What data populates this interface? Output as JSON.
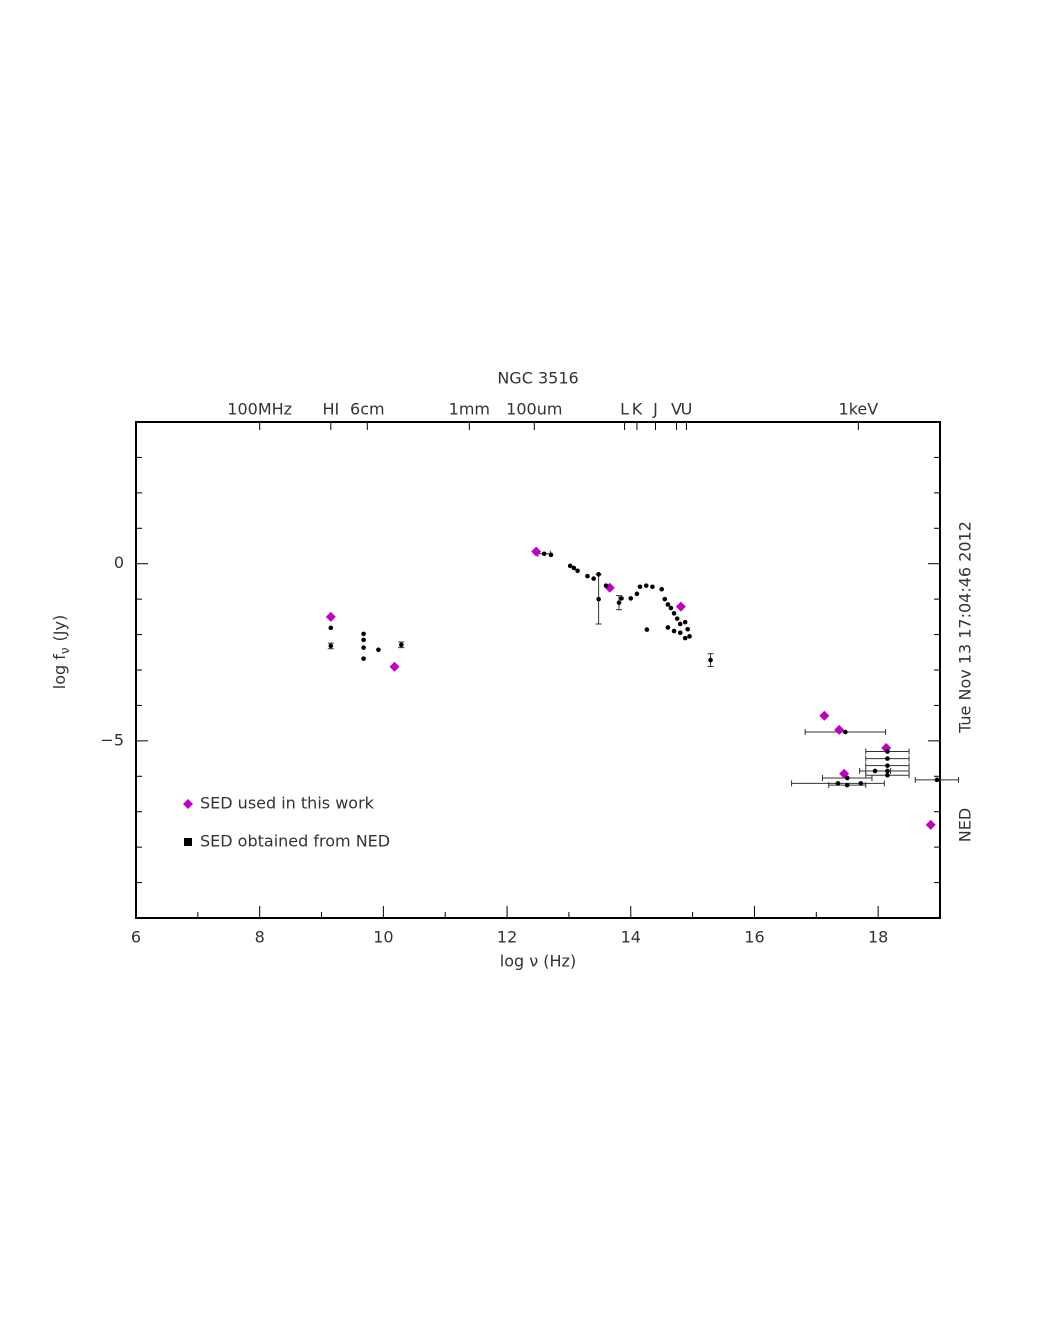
{
  "chart_data": {
    "type": "scatter",
    "title": "NGC 3516",
    "xlabel": "log ν (Hz)",
    "ylabel": "log f",
    "ylabel_sub": "ν",
    "ylabel_unit": "(Jy)",
    "side_text": "Tue Nov 13 17:04:46 2012",
    "side_source": "NED",
    "xlim": [
      6,
      19
    ],
    "ylim": [
      -10,
      4
    ],
    "xticks": [
      6,
      8,
      10,
      12,
      14,
      16,
      18
    ],
    "xminorticks": [
      7,
      9,
      11,
      13,
      15,
      17
    ],
    "yticks": [
      {
        "value": -5,
        "label": "−5"
      },
      0
    ],
    "yminorticks": [
      -9,
      -8,
      -7,
      -6,
      -4,
      -3,
      -2,
      -1,
      1,
      2,
      3
    ],
    "top_labels": [
      {
        "value": 8,
        "label": "100MHz"
      },
      {
        "value": 9.15,
        "label": "HI"
      },
      {
        "value": 9.74,
        "label": "6cm"
      },
      {
        "value": 11.39,
        "label": "1mm"
      },
      {
        "value": 12.44,
        "label": "100um"
      },
      {
        "value": 13.9,
        "label": "L"
      },
      {
        "value": 14.1,
        "label": "K"
      },
      {
        "value": 14.4,
        "label": "J"
      },
      {
        "value": 14.74,
        "label": "V"
      },
      {
        "value": 14.9,
        "label": "U"
      },
      {
        "value": 17.68,
        "label": "1keV"
      }
    ],
    "legend": "lower left",
    "series": [
      {
        "name": "SED used in this work",
        "color": "#c000c0",
        "marker": "diamond",
        "x": [
          9.15,
          10.18,
          12.47,
          13.66,
          14.81,
          17.13,
          17.37,
          17.45,
          18.13,
          18.85
        ],
        "values": [
          -1.5,
          -2.91,
          0.34,
          -0.68,
          -1.21,
          -4.29,
          -4.69,
          -5.93,
          -5.2,
          -7.37
        ]
      },
      {
        "name": "SED obtained from NED",
        "color": "#000000",
        "marker": "circle",
        "x": [
          9.15,
          9.15,
          9.68,
          9.68,
          9.68,
          9.68,
          9.92,
          10.29,
          12.6,
          12.71,
          13.02,
          13.08,
          13.14,
          13.3,
          13.4,
          13.48,
          13.48,
          13.6,
          13.81,
          13.85,
          14.0,
          14.1,
          14.15,
          14.25,
          14.35,
          14.26,
          14.5,
          14.55,
          14.6,
          14.65,
          14.7,
          14.75,
          14.8,
          14.88,
          14.92,
          14.95,
          14.6,
          14.7,
          14.8,
          14.88,
          15.29,
          17.47,
          18.15,
          18.15,
          18.15,
          18.15,
          18.15,
          17.95,
          17.5,
          17.5,
          17.72,
          17.35,
          18.95
        ],
        "values": [
          -1.81,
          -2.32,
          -1.98,
          -2.15,
          -2.37,
          -2.68,
          -2.43,
          -2.29,
          0.28,
          0.25,
          -0.06,
          -0.12,
          -0.2,
          -0.35,
          -0.42,
          -0.3,
          -1.0,
          -0.62,
          -1.1,
          -0.98,
          -0.98,
          -0.85,
          -0.65,
          -0.62,
          -0.65,
          -1.86,
          -0.72,
          -1.0,
          -1.15,
          -1.25,
          -1.4,
          -1.55,
          -1.7,
          -1.65,
          -1.85,
          -2.05,
          -1.8,
          -1.9,
          -1.95,
          -2.1,
          -2.72,
          -4.75,
          -5.3,
          -5.5,
          -5.7,
          -5.85,
          -5.97,
          -5.85,
          -6.05,
          -6.25,
          -6.2,
          -6.2,
          -6.1
        ],
        "xerr": [
          null,
          null,
          null,
          null,
          null,
          null,
          null,
          null,
          0.1,
          null,
          null,
          null,
          null,
          null,
          null,
          null,
          null,
          null,
          null,
          null,
          null,
          null,
          null,
          null,
          null,
          null,
          null,
          null,
          null,
          null,
          null,
          null,
          null,
          null,
          null,
          null,
          null,
          null,
          null,
          null,
          null,
          0.65,
          0.35,
          0.35,
          0.35,
          0.35,
          0.35,
          0.25,
          0.4,
          0.3,
          null,
          0.75,
          0.35
        ],
        "yerr": [
          null,
          0.08,
          null,
          null,
          null,
          null,
          null,
          0.08,
          null,
          null,
          null,
          null,
          null,
          null,
          null,
          null,
          0.7,
          null,
          0.2,
          null,
          null,
          null,
          null,
          null,
          null,
          null,
          null,
          null,
          null,
          null,
          null,
          null,
          null,
          null,
          null,
          null,
          null,
          null,
          null,
          null,
          0.18,
          null,
          null,
          null,
          null,
          null,
          null,
          null,
          null,
          null,
          null,
          null,
          null
        ]
      }
    ]
  }
}
